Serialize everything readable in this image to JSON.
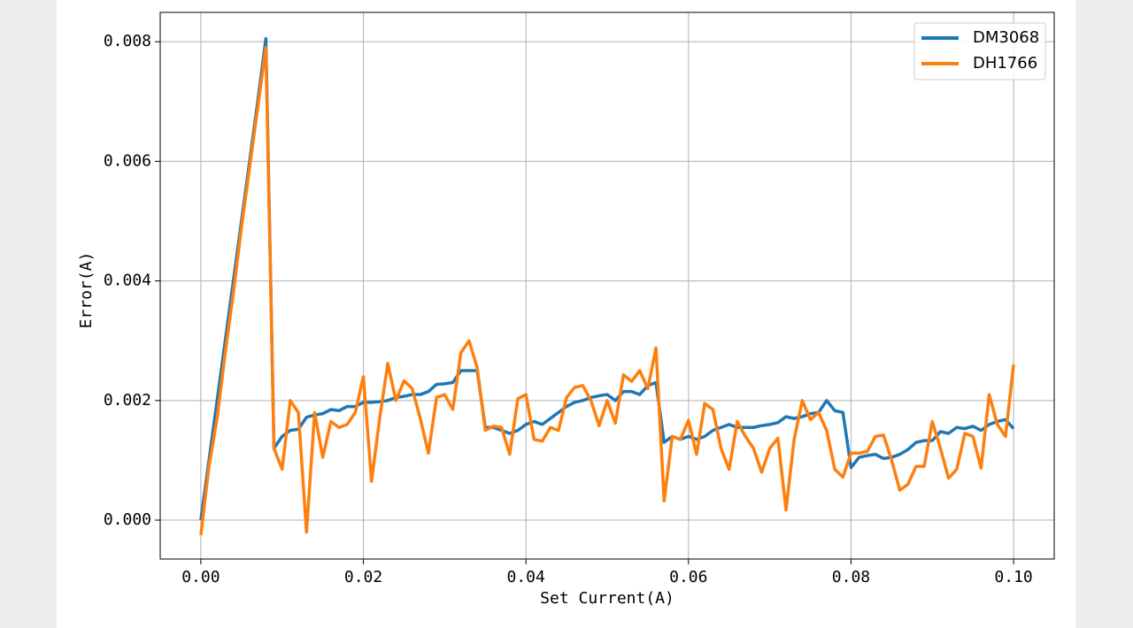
{
  "chart_data": {
    "type": "line",
    "xlabel": "Set Current(A)",
    "ylabel": "Error(A)",
    "x": [
      0,
      0.001,
      0.002,
      0.003,
      0.004,
      0.005,
      0.006,
      0.007,
      0.008,
      0.009,
      0.01,
      0.011,
      0.012,
      0.013,
      0.014,
      0.015,
      0.016,
      0.017,
      0.018,
      0.019,
      0.02,
      0.021,
      0.022,
      0.023,
      0.024,
      0.025,
      0.026,
      0.027,
      0.028,
      0.029,
      0.03,
      0.031,
      0.032,
      0.033,
      0.034,
      0.035,
      0.036,
      0.037,
      0.038,
      0.039,
      0.04,
      0.041,
      0.042,
      0.043,
      0.044,
      0.045,
      0.046,
      0.047,
      0.048,
      0.049,
      0.05,
      0.051,
      0.052,
      0.053,
      0.054,
      0.055,
      0.056,
      0.057,
      0.058,
      0.059,
      0.06,
      0.061,
      0.062,
      0.063,
      0.064,
      0.065,
      0.066,
      0.067,
      0.068,
      0.069,
      0.07,
      0.071,
      0.072,
      0.073,
      0.074,
      0.075,
      0.076,
      0.077,
      0.078,
      0.079,
      0.08,
      0.081,
      0.082,
      0.083,
      0.084,
      0.085,
      0.086,
      0.087,
      0.088,
      0.089,
      0.09,
      0.091,
      0.092,
      0.093,
      0.094,
      0.095,
      0.096,
      0.097,
      0.098,
      0.099,
      0.1
    ],
    "series": [
      {
        "name": "DM3068",
        "color": "#1f77b4",
        "values": [
          0,
          0.001,
          0.002,
          0.003,
          0.004,
          0.005,
          0.006,
          0.007,
          0.00805,
          0.0012,
          0.0014,
          0.0015,
          0.00152,
          0.00172,
          0.00176,
          0.00178,
          0.00185,
          0.00183,
          0.0019,
          0.0019,
          0.00197,
          0.00197,
          0.00198,
          0.002,
          0.00205,
          0.00207,
          0.0021,
          0.0021,
          0.00215,
          0.00227,
          0.00228,
          0.0023,
          0.0025,
          0.0025,
          0.0025,
          0.00155,
          0.00155,
          0.0015,
          0.00145,
          0.0015,
          0.0016,
          0.00165,
          0.0016,
          0.0017,
          0.0018,
          0.0019,
          0.00197,
          0.002,
          0.00205,
          0.00208,
          0.0021,
          0.002,
          0.00215,
          0.00215,
          0.0021,
          0.00225,
          0.0023,
          0.0013,
          0.0014,
          0.00135,
          0.0014,
          0.00135,
          0.0014,
          0.0015,
          0.00155,
          0.0016,
          0.00155,
          0.00155,
          0.00155,
          0.00158,
          0.0016,
          0.00163,
          0.00173,
          0.0017,
          0.00173,
          0.00178,
          0.0018,
          0.002,
          0.00183,
          0.0018,
          0.00088,
          0.00105,
          0.00108,
          0.0011,
          0.00103,
          0.00105,
          0.0011,
          0.00118,
          0.0013,
          0.00133,
          0.00133,
          0.00148,
          0.00145,
          0.00155,
          0.00153,
          0.00157,
          0.0015,
          0.0016,
          0.00165,
          0.00168,
          0.00153
        ]
      },
      {
        "name": "DH1766",
        "color": "#ff7f0e",
        "values": [
          -0.00025,
          0.0009,
          0.0017,
          0.0028,
          0.0038,
          0.0049,
          0.0059,
          0.0069,
          0.0079,
          0.0012,
          0.00085,
          0.002,
          0.0018,
          -0.0002,
          0.0018,
          0.00105,
          0.00165,
          0.00155,
          0.0016,
          0.0018,
          0.0024,
          0.00065,
          0.0017,
          0.00262,
          0.002,
          0.00233,
          0.0022,
          0.0017,
          0.00112,
          0.00205,
          0.0021,
          0.00185,
          0.0028,
          0.003,
          0.00255,
          0.0015,
          0.00157,
          0.00155,
          0.0011,
          0.00203,
          0.0021,
          0.00135,
          0.00132,
          0.00155,
          0.0015,
          0.00205,
          0.00222,
          0.00225,
          0.002,
          0.00158,
          0.002,
          0.00162,
          0.00243,
          0.00232,
          0.0025,
          0.0022,
          0.00288,
          0.00032,
          0.0014,
          0.00135,
          0.00167,
          0.0011,
          0.00195,
          0.00185,
          0.0012,
          0.00085,
          0.00165,
          0.0014,
          0.0012,
          0.0008,
          0.0012,
          0.00137,
          0.00017,
          0.00135,
          0.002,
          0.00168,
          0.0018,
          0.0015,
          0.00085,
          0.00072,
          0.00112,
          0.00112,
          0.00115,
          0.0014,
          0.00142,
          0.001,
          0.0005,
          0.0006,
          0.0009,
          0.0009,
          0.00165,
          0.0012,
          0.0007,
          0.00085,
          0.00145,
          0.0014,
          0.00087,
          0.0021,
          0.0016,
          0.0014,
          0.0026
        ]
      }
    ],
    "xlim": [
      -0.005,
      0.105
    ],
    "ylim": [
      -0.00065,
      0.00849
    ],
    "xticks": [
      {
        "value": 0,
        "label": "0.00"
      },
      {
        "value": 0.02,
        "label": "0.02"
      },
      {
        "value": 0.04,
        "label": "0.04"
      },
      {
        "value": 0.06,
        "label": "0.06"
      },
      {
        "value": 0.08,
        "label": "0.08"
      },
      {
        "value": 0.1,
        "label": "0.10"
      }
    ],
    "yticks": [
      {
        "value": 0,
        "label": "0.000"
      },
      {
        "value": 0.002,
        "label": "0.002"
      },
      {
        "value": 0.004,
        "label": "0.004"
      },
      {
        "value": 0.006,
        "label": "0.006"
      },
      {
        "value": 0.008,
        "label": "0.008"
      }
    ],
    "grid": true,
    "legend": "upper right"
  }
}
